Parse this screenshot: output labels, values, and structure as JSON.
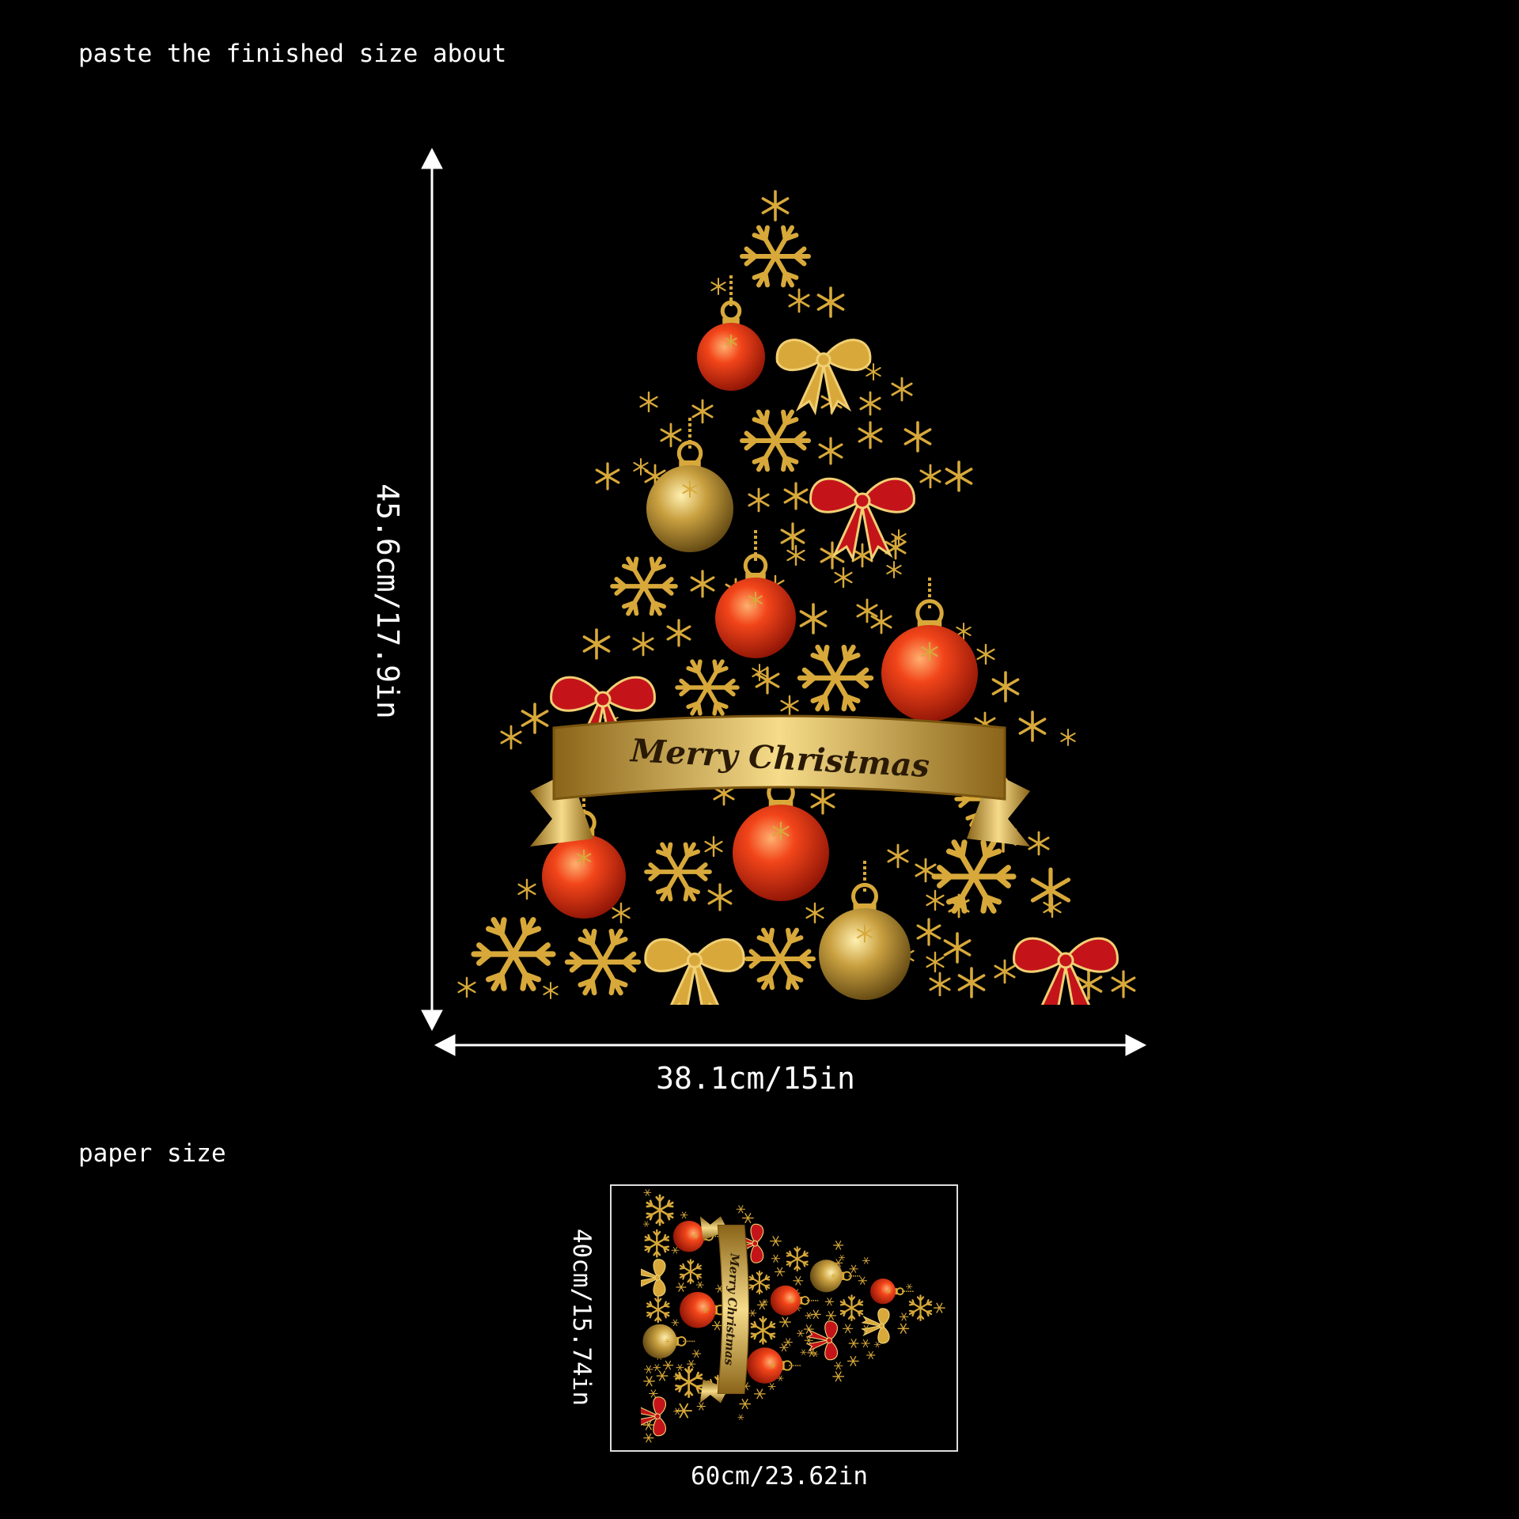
{
  "header": {
    "finished_size_label": "paste the finished size about"
  },
  "finished": {
    "height_label": "45.6cm/17.9in",
    "width_label": "38.1cm/15in"
  },
  "artwork": {
    "banner_text": "Merry Christmas"
  },
  "paper": {
    "label": "paper size",
    "height_label": "40cm/15.74in",
    "width_label": "60cm/23.62in"
  },
  "colors": {
    "background": "#000000",
    "gold": "#d8a93a",
    "red": "#e23a12",
    "bow_red": "#c4141a",
    "text": "#ffffff"
  }
}
